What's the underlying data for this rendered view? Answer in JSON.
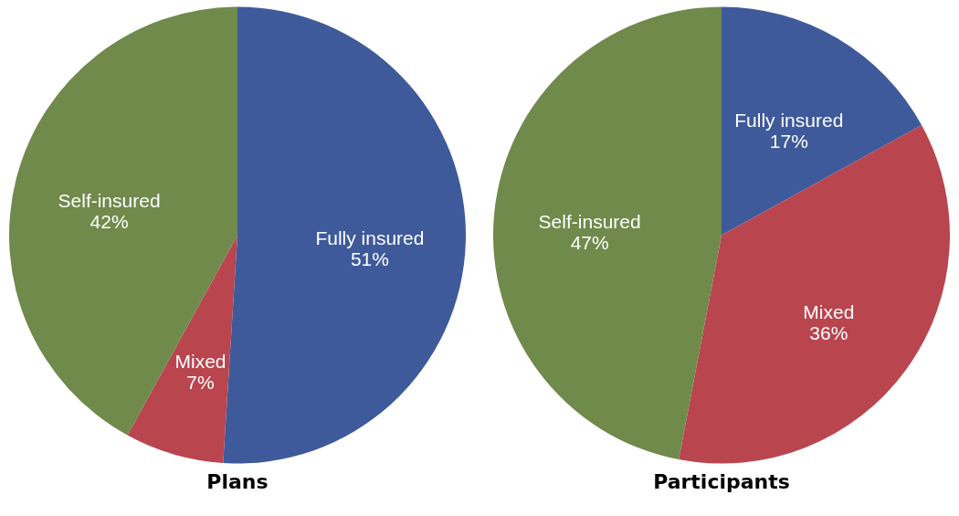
{
  "chart_data": [
    {
      "type": "pie",
      "title": "Plans",
      "categories": [
        "Fully insured",
        "Mixed",
        "Self-insured"
      ],
      "values": [
        51,
        7,
        42
      ],
      "value_labels": [
        "51%",
        "7%",
        "42%"
      ],
      "colors": [
        "#3e5a9b",
        "#b9454f",
        "#6f8a4b"
      ],
      "legend": false
    },
    {
      "type": "pie",
      "title": "Participants",
      "categories": [
        "Fully insured",
        "Mixed",
        "Self-insured"
      ],
      "values": [
        17,
        36,
        47
      ],
      "value_labels": [
        "17%",
        "36%",
        "47%"
      ],
      "colors": [
        "#3e5a9b",
        "#b9454f",
        "#6f8a4b"
      ],
      "legend": false
    }
  ]
}
